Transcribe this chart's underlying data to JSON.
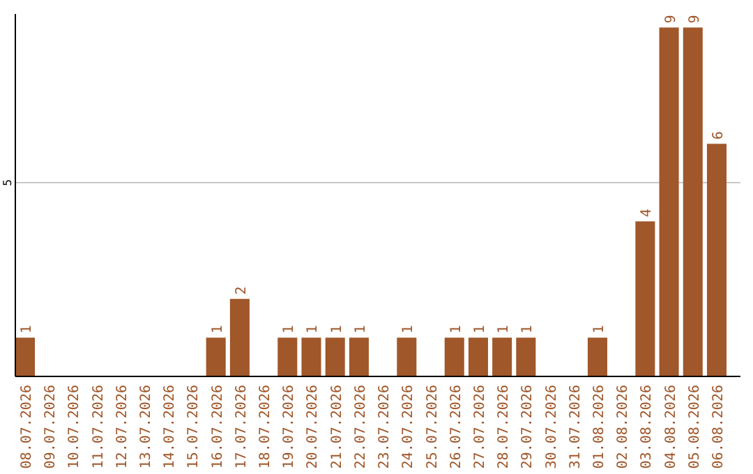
{
  "chart_data": {
    "type": "bar",
    "categories": [
      "08.07.2026",
      "09.07.2026",
      "10.07.2026",
      "11.07.2026",
      "12.07.2026",
      "13.07.2026",
      "14.07.2026",
      "15.07.2026",
      "16.07.2026",
      "17.07.2026",
      "18.07.2026",
      "19.07.2026",
      "20.07.2026",
      "21.07.2026",
      "22.07.2026",
      "23.07.2026",
      "24.07.2026",
      "25.07.2026",
      "26.07.2026",
      "27.07.2026",
      "28.07.2026",
      "29.07.2026",
      "30.07.2026",
      "31.07.2026",
      "01.08.2026",
      "02.08.2026",
      "03.08.2026",
      "04.08.2026",
      "05.08.2026",
      "06.08.2026"
    ],
    "values": [
      1,
      0,
      0,
      0,
      0,
      0,
      0,
      0,
      1,
      2,
      0,
      1,
      1,
      1,
      1,
      0,
      1,
      0,
      1,
      1,
      1,
      1,
      0,
      0,
      1,
      0,
      4,
      9,
      9,
      6
    ],
    "value_labels": [
      "1",
      null,
      null,
      null,
      null,
      null,
      null,
      null,
      "1",
      "2",
      null,
      "1",
      "1",
      "1",
      "1",
      null,
      "1",
      null,
      "1",
      "1",
      "1",
      "1",
      null,
      null,
      "1",
      null,
      "4",
      "9",
      "9",
      "6"
    ],
    "color": "#a0572a",
    "ylim": [
      0,
      9.35
    ],
    "yticks": [
      5
    ],
    "grid": "y"
  }
}
